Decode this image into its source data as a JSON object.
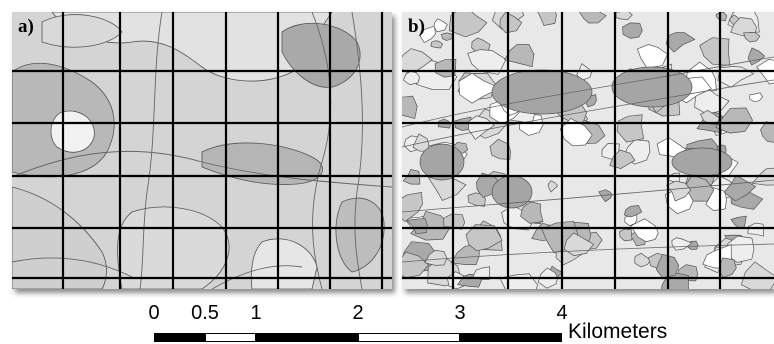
{
  "panels": [
    {
      "id": "a",
      "label": "a)"
    },
    {
      "id": "b",
      "label": "b)"
    }
  ],
  "scale_bar": {
    "ticks": [
      "0",
      "0.5",
      "1",
      "2",
      "3",
      "4"
    ],
    "tick_values": [
      0,
      0.5,
      1,
      2,
      3,
      4
    ],
    "units": "Kilometers",
    "segment_colors": [
      "#000000",
      "#ffffff",
      "#000000",
      "#ffffff",
      "#000000"
    ]
  },
  "colors": {
    "grid": "#000000",
    "boundary": "#555555",
    "fills": [
      "#c6c6c6",
      "#d9d9d9",
      "#a9a9a9",
      "#eeeeee",
      "#b8b8b8",
      "#ffffff"
    ]
  }
}
